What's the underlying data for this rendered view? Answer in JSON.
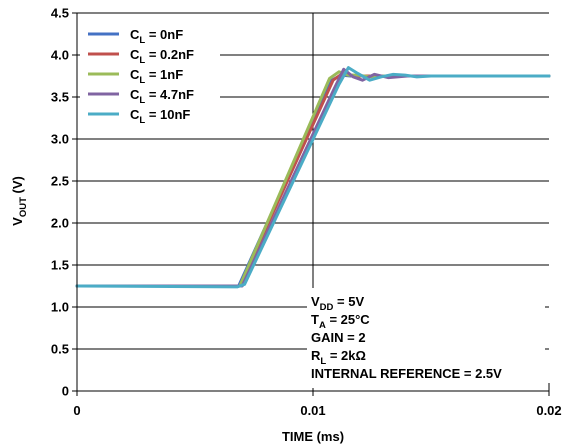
{
  "chart_data": {
    "type": "line",
    "title": "",
    "xlabel": "TIME (ms)",
    "ylabel": {
      "main": "V",
      "sub": "OUT",
      "unit": " (V)"
    },
    "xlim": [
      0,
      0.02
    ],
    "ylim": [
      0,
      4.5
    ],
    "xticks": [
      0,
      0.01,
      0.02
    ],
    "xtick_labels": [
      "0",
      "0.01",
      "0.02"
    ],
    "yticks": [
      0,
      0.5,
      1.0,
      1.5,
      2.0,
      2.5,
      3.0,
      3.5,
      4.0,
      4.5
    ],
    "ytick_labels": [
      "0",
      "0.5",
      "1.0",
      "1.5",
      "2.0",
      "2.5",
      "3.0",
      "3.5",
      "4.0",
      "4.5"
    ],
    "grid": {
      "horizontal": true,
      "vertical_at_x": [
        0.01
      ]
    },
    "legend_position": "top-left",
    "series": [
      {
        "name": "CL = 0nF",
        "label": {
          "main": "C",
          "sub": "L",
          "rest": " = 0nF"
        },
        "color": "#4472C4",
        "x": [
          0,
          0.00685,
          0.0108,
          0.0112,
          0.0116,
          0.012,
          0.013,
          0.02
        ],
        "y": [
          1.25,
          1.25,
          3.7,
          3.76,
          3.75,
          3.75,
          3.75,
          3.75
        ]
      },
      {
        "name": "CL = 0.2nF",
        "label": {
          "main": "C",
          "sub": "L",
          "rest": " = 0.2nF"
        },
        "color": "#C0504D",
        "x": [
          0,
          0.0069,
          0.01085,
          0.0112,
          0.0116,
          0.012,
          0.013,
          0.02
        ],
        "y": [
          1.25,
          1.25,
          3.7,
          3.77,
          3.76,
          3.75,
          3.75,
          3.75
        ]
      },
      {
        "name": "CL = 1nF",
        "label": {
          "main": "C",
          "sub": "L",
          "rest": " = 1nF"
        },
        "color": "#9BBB59",
        "x": [
          0,
          0.0069,
          0.0107,
          0.0111,
          0.0115,
          0.0119,
          0.0124,
          0.013,
          0.02
        ],
        "y": [
          1.25,
          1.25,
          3.72,
          3.8,
          3.76,
          3.76,
          3.74,
          3.75,
          3.75
        ]
      },
      {
        "name": "CL = 4.7nF",
        "label": {
          "main": "C",
          "sub": "L",
          "rest": " = 4.7nF"
        },
        "color": "#8064A2",
        "x": [
          0,
          0.007,
          0.0109,
          0.0113,
          0.0117,
          0.0121,
          0.0126,
          0.0132,
          0.014,
          0.02
        ],
        "y": [
          1.25,
          1.25,
          3.6,
          3.83,
          3.74,
          3.7,
          3.77,
          3.73,
          3.75,
          3.75
        ]
      },
      {
        "name": "CL = 10nF",
        "label": {
          "main": "C",
          "sub": "L",
          "rest": " = 10nF"
        },
        "color": "#4BACC6",
        "x": [
          0,
          0.0068,
          0.0071,
          0.0111,
          0.0115,
          0.0119,
          0.0124,
          0.0129,
          0.0134,
          0.0139,
          0.0144,
          0.015,
          0.02
        ],
        "y": [
          1.25,
          1.24,
          1.27,
          3.65,
          3.85,
          3.78,
          3.7,
          3.74,
          3.77,
          3.76,
          3.74,
          3.75,
          3.75
        ]
      }
    ],
    "annotation": [
      {
        "main": "V",
        "sub": "DD",
        "rest": " = 5V"
      },
      {
        "main": "T",
        "sub": "A",
        "rest": " = 25°C"
      },
      {
        "main": "GAIN = 2",
        "sub": "",
        "rest": ""
      },
      {
        "main": "R",
        "sub": "L",
        "rest": " = 2kΩ"
      },
      {
        "main": "INTERNAL REFERENCE = 2.5V",
        "sub": "",
        "rest": ""
      }
    ]
  }
}
